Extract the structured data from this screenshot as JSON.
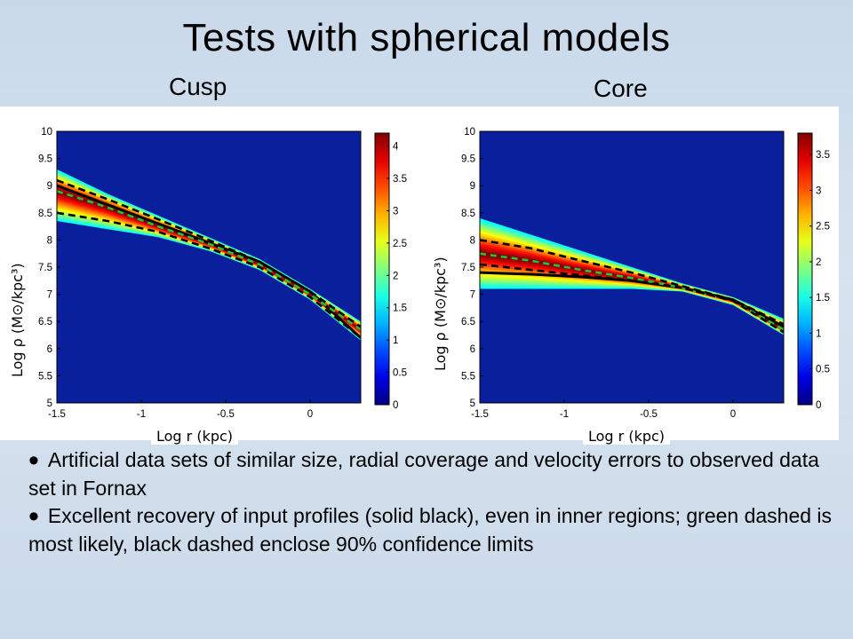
{
  "slide": {
    "title": "Tests with spherical models",
    "bullets": [
      "Artificial data sets of similar size, radial coverage and velocity errors to observed data set in Fornax",
      "Excellent recovery of input profiles (solid black), even in inner regions; green dashed is most likely, black dashed enclose 90% confidence limits"
    ]
  },
  "colors": {
    "background": "#cfdceb",
    "plot_background": "#0a1f9c",
    "input_profile": "#000000",
    "most_likely": "#22c43a",
    "confidence_limits": "#000000"
  },
  "chart_data": [
    {
      "type": "heatmap",
      "title": "Cusp",
      "xlabel": "Log r (kpc)",
      "ylabel": "Log ρ (M⊙/kpc³)",
      "xlim": [
        -1.5,
        0.3
      ],
      "ylim": [
        5,
        10
      ],
      "xticks": [
        "-1.5",
        "-1",
        "-0.5",
        "0"
      ],
      "yticks": [
        "5",
        "5.5",
        "6",
        "6.5",
        "7",
        "7.5",
        "8",
        "8.5",
        "9",
        "9.5",
        "10"
      ],
      "colorbar": {
        "range": [
          0,
          4.2
        ],
        "ticks": [
          "0",
          "0.5",
          "1",
          "1.5",
          "2",
          "2.5",
          "3",
          "3.5",
          "4"
        ]
      },
      "x": [
        -1.5,
        -1.2,
        -0.9,
        -0.6,
        -0.3,
        0.0,
        0.3
      ],
      "series": [
        {
          "name": "solid black",
          "style": "solid",
          "values": [
            9.0,
            8.65,
            8.3,
            7.95,
            7.6,
            7.05,
            6.2
          ]
        },
        {
          "name": "green dashed",
          "style": "dashed",
          "values": [
            8.9,
            8.6,
            8.25,
            7.93,
            7.55,
            7.0,
            6.35
          ]
        },
        {
          "name": "black dashed",
          "style": "dashed",
          "values": [
            9.1,
            8.75,
            8.38,
            8.0,
            7.6,
            7.05,
            6.4
          ]
        },
        {
          "name": "black dashed",
          "style": "dashed",
          "values": [
            8.5,
            8.35,
            8.15,
            7.85,
            7.5,
            6.95,
            6.2
          ]
        }
      ],
      "band": {
        "upper": [
          9.3,
          8.85,
          8.45,
          8.05,
          7.65,
          7.1,
          6.5
        ],
        "lower": [
          8.35,
          8.2,
          8.05,
          7.8,
          7.45,
          6.9,
          6.15
        ]
      }
    },
    {
      "type": "heatmap",
      "title": "Core",
      "xlabel": "Log r (kpc)",
      "ylabel": "Log ρ (M⊙/kpc³)",
      "xlim": [
        -1.5,
        0.3
      ],
      "ylim": [
        5,
        10
      ],
      "xticks": [
        "-1.5",
        "-1",
        "-0.5",
        "0"
      ],
      "yticks": [
        "5",
        "5.5",
        "6",
        "6.5",
        "7",
        "7.5",
        "8",
        "8.5",
        "9",
        "9.5",
        "10"
      ],
      "colorbar": {
        "range": [
          0,
          3.8
        ],
        "ticks": [
          "0",
          "0.5",
          "1",
          "1.5",
          "2",
          "2.5",
          "3",
          "3.5"
        ]
      },
      "x": [
        -1.5,
        -1.2,
        -0.9,
        -0.6,
        -0.3,
        0.0,
        0.3
      ],
      "series": [
        {
          "name": "solid black",
          "style": "solid",
          "values": [
            7.4,
            7.37,
            7.32,
            7.25,
            7.12,
            6.9,
            6.4
          ]
        },
        {
          "name": "green dashed",
          "style": "dashed",
          "values": [
            7.75,
            7.62,
            7.45,
            7.3,
            7.12,
            6.88,
            6.35
          ]
        },
        {
          "name": "black dashed",
          "style": "dashed",
          "values": [
            8.0,
            7.85,
            7.62,
            7.4,
            7.15,
            6.9,
            6.45
          ]
        },
        {
          "name": "black dashed",
          "style": "dashed",
          "values": [
            7.55,
            7.45,
            7.35,
            7.25,
            7.12,
            6.88,
            6.3
          ]
        }
      ],
      "band": {
        "upper": [
          8.4,
          8.1,
          7.8,
          7.5,
          7.2,
          6.95,
          6.55
        ],
        "lower": [
          7.1,
          7.1,
          7.1,
          7.1,
          7.05,
          6.8,
          6.25
        ]
      }
    }
  ]
}
